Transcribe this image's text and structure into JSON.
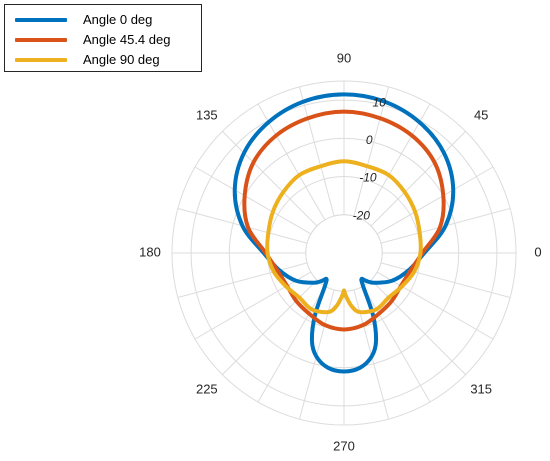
{
  "chart_data": {
    "type": "polar-line",
    "theta_ticks": [
      "0",
      "45",
      "90",
      "135",
      "180",
      "225",
      "270",
      "315"
    ],
    "theta_tick_angles_deg": [
      0,
      45,
      90,
      135,
      180,
      225,
      270,
      315
    ],
    "r_ticks": [
      "-20",
      "-10",
      "0",
      "10"
    ],
    "r_tick_values": [
      -20,
      -10,
      0,
      10
    ],
    "rlim": [
      -30,
      15
    ],
    "r_label_angle_deg": 80,
    "grid": true,
    "legend_location": "top-left",
    "series": [
      {
        "name": "Angle 0 deg",
        "color": "#0072BD",
        "theta_deg": [
          0,
          15,
          30,
          45,
          60,
          75,
          90,
          105,
          120,
          135,
          150,
          165,
          180,
          195,
          210,
          225,
          232,
          236,
          240,
          245,
          250,
          255,
          262,
          270,
          278,
          285,
          290,
          295,
          300,
          304,
          308,
          315,
          330,
          345,
          360
        ],
        "r_db": [
          -9,
          -2.5,
          3,
          7,
          9.5,
          11,
          11.5,
          11,
          9.5,
          7,
          3,
          -2.5,
          -9,
          -12.5,
          -15.5,
          -19,
          -20.8,
          -21.8,
          -20,
          -12,
          -5.5,
          -2,
          0.3,
          1,
          0.3,
          -2,
          -5.5,
          -12,
          -20,
          -21.8,
          -20.8,
          -19,
          -15.5,
          -12.5,
          -9
        ]
      },
      {
        "name": "Angle 45.4 deg",
        "color": "#D95319",
        "theta_deg": [
          0,
          15,
          30,
          45,
          60,
          75,
          90,
          105,
          120,
          135,
          150,
          165,
          180,
          195,
          210,
          225,
          240,
          255,
          270,
          285,
          300,
          315,
          330,
          345,
          360
        ],
        "r_db": [
          -9.5,
          -4,
          0,
          3.5,
          5.5,
          6.5,
          7,
          6.5,
          5.5,
          3.5,
          0,
          -4,
          -9.5,
          -12,
          -12.8,
          -12.3,
          -11.7,
          -10.5,
          -10,
          -10.5,
          -11.7,
          -12.3,
          -12.8,
          -12,
          -9.5
        ]
      },
      {
        "name": "Angle 90 deg",
        "color": "#EDB120",
        "theta_deg": [
          0,
          15,
          30,
          45,
          60,
          75,
          90,
          105,
          120,
          135,
          150,
          165,
          180,
          195,
          210,
          225,
          240,
          255,
          262,
          268,
          270,
          272,
          278,
          285,
          300,
          315,
          330,
          345,
          360
        ],
        "r_db": [
          -10,
          -9.5,
          -8.5,
          -7.5,
          -6.5,
          -6.5,
          -6,
          -6.5,
          -6.5,
          -7.5,
          -8.5,
          -9.5,
          -10,
          -11,
          -12.5,
          -13.5,
          -13,
          -14,
          -16,
          -19,
          -20.2,
          -19,
          -16,
          -14,
          -13,
          -13.5,
          -12.5,
          -11,
          -10
        ]
      }
    ]
  }
}
